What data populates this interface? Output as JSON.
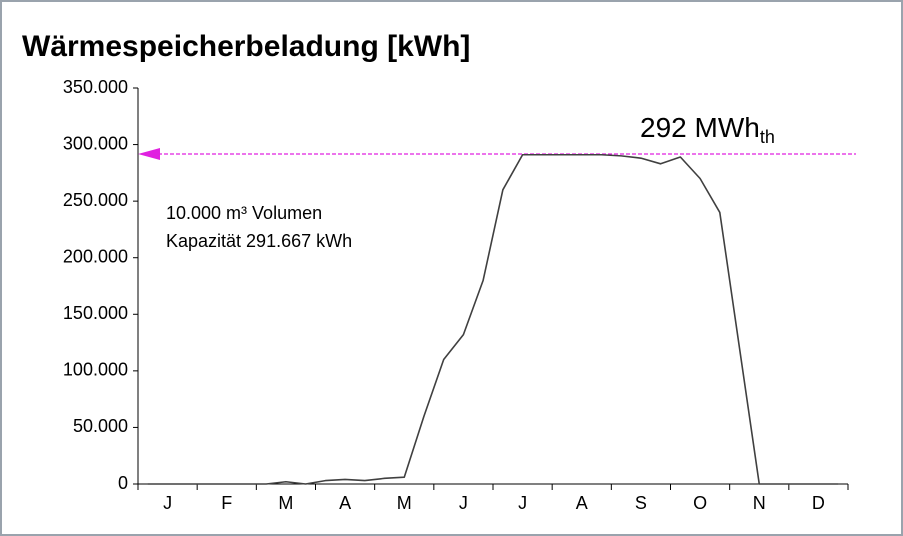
{
  "chart_data": {
    "type": "line",
    "title": "Wärmespeicherbeladung [kWh]",
    "categories": [
      null,
      "J",
      null,
      null,
      "F",
      null,
      null,
      "M",
      null,
      null,
      "A",
      null,
      null,
      "M",
      null,
      null,
      "J",
      null,
      null,
      "J",
      null,
      null,
      "A",
      null,
      null,
      "S",
      null,
      null,
      "O",
      null,
      null,
      "N",
      null,
      null,
      "D",
      null
    ],
    "series": [
      {
        "color": "#404040",
        "values": [
          0,
          0,
          0,
          0,
          0,
          0,
          0,
          2000,
          0,
          3000,
          4000,
          3000,
          5000,
          6000,
          60000,
          110000,
          132000,
          180000,
          260000,
          291000,
          291000,
          291000,
          291000,
          291000,
          290000,
          288000,
          283000,
          289000,
          270000,
          240000,
          120000,
          0,
          0,
          0,
          0,
          0
        ]
      }
    ],
    "ylim": [
      0,
      350000
    ],
    "yticks": [
      0,
      {
        "value": 50000,
        "label": "50.000"
      },
      {
        "value": 100000,
        "label": "100.000"
      },
      {
        "value": 150000,
        "label": "150.000"
      },
      {
        "value": 200000,
        "label": "200.000"
      },
      {
        "value": 250000,
        "label": "250.000"
      },
      {
        "value": 300000,
        "label": "300.000"
      },
      {
        "value": 350000,
        "label": "350.000"
      }
    ],
    "capacity_line": {
      "value": 291667,
      "color": "#e020e0",
      "label": "292 MWh",
      "subscript": "th"
    },
    "annotations": [
      "10.000 m³ Volumen",
      "Kapazität 291.667 kWh"
    ]
  }
}
